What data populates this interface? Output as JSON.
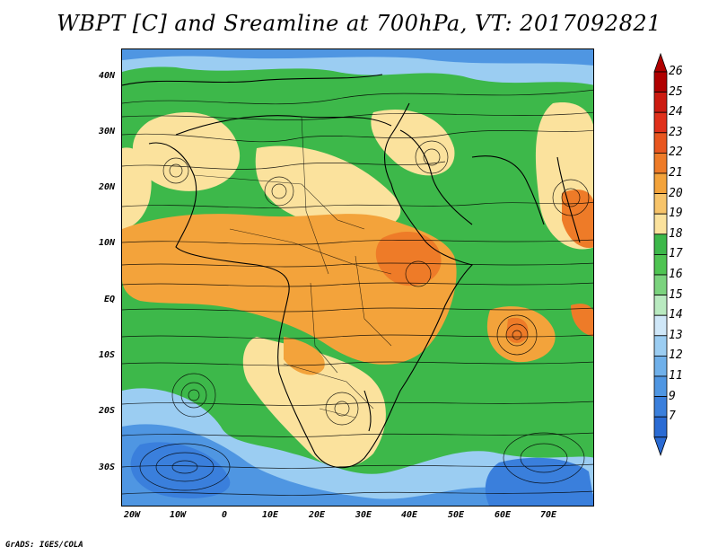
{
  "title": "WBPT [C] and Sreamline at 700hPa, VT: 2017092821",
  "credit": "GrADS: IGES/COLA",
  "map": {
    "lat_labels": [
      "40N",
      "30N",
      "20N",
      "10N",
      "EQ",
      "10S",
      "20S",
      "30S"
    ],
    "lat_values": [
      40,
      30,
      20,
      10,
      0,
      -10,
      -20,
      -30
    ],
    "lon_labels": [
      "20W",
      "10W",
      "0",
      "10E",
      "20E",
      "30E",
      "40E",
      "50E",
      "60E",
      "70E"
    ],
    "lon_values": [
      -20,
      -10,
      0,
      10,
      20,
      30,
      40,
      50,
      60,
      70
    ],
    "lon_range": [
      -20,
      80
    ],
    "lat_range": [
      -37,
      45
    ]
  },
  "colorbar": {
    "labels": [
      "26",
      "25",
      "24",
      "23",
      "22",
      "21",
      "20",
      "19",
      "18",
      "17",
      "16",
      "15",
      "14",
      "13",
      "12",
      "11",
      "9",
      "7"
    ],
    "colors": [
      "#b00000",
      "#cc1a10",
      "#e0301a",
      "#e8561f",
      "#ee7b28",
      "#f3a33b",
      "#f7c46a",
      "#fbe29d",
      "#3db84a",
      "#4fc452",
      "#7bd37e",
      "#b9eac0",
      "#cfe7f8",
      "#9bcdf2",
      "#6fb0ea",
      "#4f96e2",
      "#3a7fdc",
      "#2a6bd4"
    ],
    "extend": "both"
  }
}
